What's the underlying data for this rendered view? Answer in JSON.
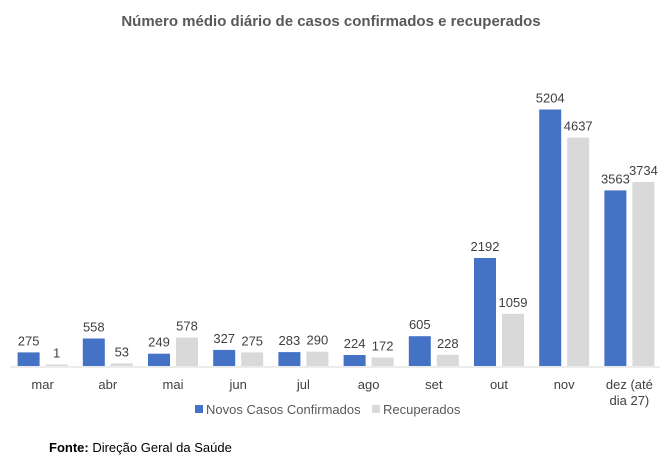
{
  "chart_data": {
    "type": "bar",
    "title": "Número médio diário de casos confirmados e recuperados",
    "categories": [
      "mar",
      "abr",
      "mai",
      "jun",
      "jul",
      "ago",
      "set",
      "out",
      "nov",
      "dez (até dia 27)"
    ],
    "category_lines": [
      [
        "mar"
      ],
      [
        "abr"
      ],
      [
        "mai"
      ],
      [
        "jun"
      ],
      [
        "jul"
      ],
      [
        "ago"
      ],
      [
        "set"
      ],
      [
        "out"
      ],
      [
        "nov"
      ],
      [
        "dez (até",
        "dia 27)"
      ]
    ],
    "series": [
      {
        "name": "Novos Casos Confirmados",
        "color": "#4472C4",
        "values": [
          275,
          558,
          249,
          327,
          283,
          224,
          605,
          2192,
          5204,
          3563
        ]
      },
      {
        "name": "Recuperados",
        "color": "#D9D9D9",
        "values": [
          1,
          53,
          578,
          275,
          290,
          172,
          228,
          1059,
          4637,
          3734
        ]
      }
    ],
    "xlabel": "",
    "ylabel": "",
    "ylim": [
      0,
      5600
    ],
    "grid": false,
    "legend": "bottom"
  },
  "source": {
    "label": "Fonte:",
    "text": " Direção Geral da Saúde"
  }
}
